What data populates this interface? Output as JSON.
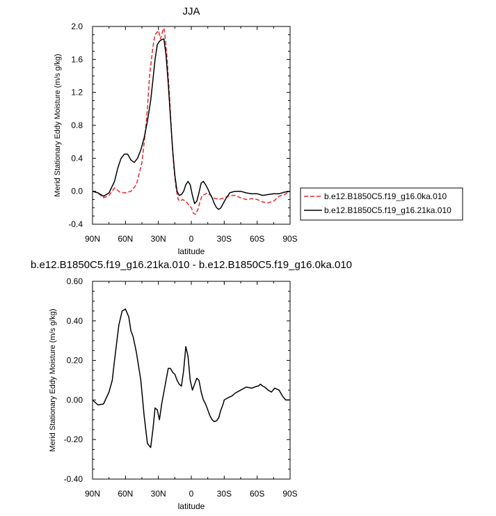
{
  "colors": {
    "series_dashed": "#e8262a",
    "series_solid": "#000000",
    "axis": "#000000",
    "background": "#ffffff"
  },
  "chart_data": [
    {
      "type": "line",
      "title": "JJA",
      "xlabel": "latitude",
      "ylabel": "Merid Stationary Eddy Moisture (m/s g/kg)",
      "xlim": [
        -90,
        90
      ],
      "ylim": [
        -0.4,
        2.0
      ],
      "x_ticks": [
        -90,
        -60,
        -30,
        0,
        30,
        60,
        90
      ],
      "x_tick_labels": [
        "90N",
        "60N",
        "30N",
        "0",
        "30S",
        "60S",
        "90S"
      ],
      "y_ticks": [
        -0.4,
        0.0,
        0.4,
        0.8,
        1.2,
        1.6,
        2.0
      ],
      "y_tick_labels": [
        "-0.4",
        "0.0",
        "0.4",
        "0.8",
        "1.2",
        "1.6",
        "2.0"
      ],
      "legend_position": "right",
      "series": [
        {
          "name": "b.e12.B1850C5.f19_g16.0ka.010",
          "style": "dashed",
          "color": "#e8262a",
          "x": [
            -90,
            -85,
            -80,
            -75,
            -70,
            -65,
            -60,
            -55,
            -50,
            -45,
            -42,
            -40,
            -38,
            -35,
            -33,
            -30,
            -28,
            -26,
            -25,
            -24,
            -22,
            -20,
            -18,
            -16,
            -14,
            -12,
            -10,
            -8,
            -5,
            -2,
            0,
            2,
            4,
            6,
            8,
            10,
            15,
            20,
            25,
            30,
            35,
            40,
            45,
            50,
            55,
            60,
            65,
            70,
            75,
            80,
            85,
            90
          ],
          "y": [
            0.0,
            -0.02,
            -0.08,
            -0.05,
            0.04,
            -0.01,
            -0.02,
            0.0,
            0.08,
            0.35,
            0.7,
            1.0,
            1.4,
            1.75,
            1.9,
            1.95,
            1.85,
            1.95,
            1.98,
            1.9,
            1.6,
            1.2,
            0.7,
            0.3,
            0.05,
            -0.1,
            -0.12,
            -0.1,
            -0.12,
            -0.17,
            -0.2,
            -0.27,
            -0.28,
            -0.22,
            -0.12,
            -0.05,
            -0.02,
            -0.08,
            -0.1,
            -0.08,
            -0.05,
            -0.05,
            -0.08,
            -0.1,
            -0.09,
            -0.1,
            -0.13,
            -0.14,
            -0.12,
            -0.06,
            -0.04,
            0.0
          ]
        },
        {
          "name": "b.e12.B1850C5.f19_g16.21ka.010",
          "style": "solid",
          "color": "#000000",
          "x": [
            -90,
            -85,
            -80,
            -75,
            -70,
            -67,
            -64,
            -61,
            -58,
            -55,
            -52,
            -49,
            -46,
            -43,
            -40,
            -37,
            -35,
            -33,
            -31,
            -29,
            -27,
            -25,
            -23,
            -21,
            -19,
            -17,
            -15,
            -13,
            -11,
            -9,
            -7,
            -5,
            -3,
            -1,
            1,
            3,
            5,
            7,
            9,
            11,
            13,
            15,
            17,
            19,
            21,
            23,
            25,
            27,
            29,
            31,
            33,
            35,
            37,
            40,
            45,
            50,
            55,
            60,
            65,
            70,
            75,
            80,
            85,
            90
          ],
          "y": [
            0.0,
            -0.02,
            -0.06,
            -0.02,
            0.12,
            0.28,
            0.4,
            0.45,
            0.45,
            0.38,
            0.35,
            0.4,
            0.5,
            0.65,
            0.85,
            1.1,
            1.35,
            1.6,
            1.78,
            1.82,
            1.84,
            1.85,
            1.65,
            1.3,
            0.9,
            0.5,
            0.2,
            0.0,
            -0.05,
            -0.04,
            0.0,
            0.08,
            0.12,
            0.08,
            -0.05,
            -0.15,
            -0.12,
            -0.02,
            0.1,
            0.12,
            0.08,
            0.03,
            -0.03,
            -0.08,
            -0.15,
            -0.2,
            -0.22,
            -0.2,
            -0.15,
            -0.1,
            -0.06,
            -0.02,
            -0.01,
            0.0,
            0.0,
            -0.02,
            -0.03,
            -0.03,
            -0.05,
            -0.04,
            -0.03,
            -0.03,
            -0.01,
            0.0
          ]
        }
      ]
    },
    {
      "type": "line",
      "title": "b.e12.B1850C5.f19_g16.21ka.010 - b.e12.B1850C5.f19_g16.0ka.010",
      "xlabel": "latitude",
      "ylabel": "Merid Stationary Eddy Moisture (m/s g/kg)",
      "xlim": [
        -90,
        90
      ],
      "ylim": [
        -0.4,
        0.6
      ],
      "x_ticks": [
        -90,
        -60,
        -30,
        0,
        30,
        60,
        90
      ],
      "x_tick_labels": [
        "90N",
        "60N",
        "30N",
        "0",
        "30S",
        "60S",
        "90S"
      ],
      "y_ticks": [
        -0.4,
        -0.2,
        0.0,
        0.2,
        0.4,
        0.6
      ],
      "y_tick_labels": [
        "-0.40",
        "-0.20",
        "0.00",
        "0.20",
        "0.40",
        "0.60"
      ],
      "series": [
        {
          "style": "solid",
          "color": "#000000",
          "x": [
            -90,
            -85,
            -80,
            -75,
            -72,
            -70,
            -66,
            -63,
            -60,
            -57,
            -55,
            -53,
            -50,
            -46,
            -43,
            -40,
            -37,
            -35,
            -33,
            -31,
            -29,
            -27,
            -25,
            -23,
            -21,
            -19,
            -17,
            -15,
            -13,
            -11,
            -9,
            -7,
            -5,
            -3,
            -1,
            1,
            3,
            5,
            7,
            9,
            11,
            13,
            15,
            17,
            19,
            21,
            23,
            25,
            27,
            29,
            30,
            33,
            35,
            37,
            40,
            45,
            50,
            55,
            60,
            61,
            63,
            65,
            67,
            70,
            73,
            76,
            80,
            83,
            86,
            88,
            90
          ],
          "y": [
            0.0,
            -0.025,
            -0.02,
            0.04,
            0.1,
            0.2,
            0.38,
            0.45,
            0.46,
            0.42,
            0.35,
            0.32,
            0.24,
            0.1,
            -0.08,
            -0.22,
            -0.24,
            -0.15,
            -0.04,
            -0.05,
            -0.1,
            -0.02,
            0.04,
            0.1,
            0.16,
            0.16,
            0.14,
            0.13,
            0.1,
            0.08,
            0.07,
            0.15,
            0.27,
            0.22,
            0.1,
            0.05,
            0.08,
            0.11,
            0.1,
            0.04,
            0.0,
            -0.02,
            -0.05,
            -0.08,
            -0.1,
            -0.11,
            -0.105,
            -0.09,
            -0.05,
            -0.02,
            0.0,
            0.01,
            0.015,
            0.02,
            0.035,
            0.05,
            0.065,
            0.06,
            0.07,
            0.07,
            0.08,
            0.07,
            0.065,
            0.05,
            0.04,
            0.06,
            0.05,
            0.02,
            0.0,
            0.0,
            0.0
          ]
        }
      ]
    }
  ]
}
